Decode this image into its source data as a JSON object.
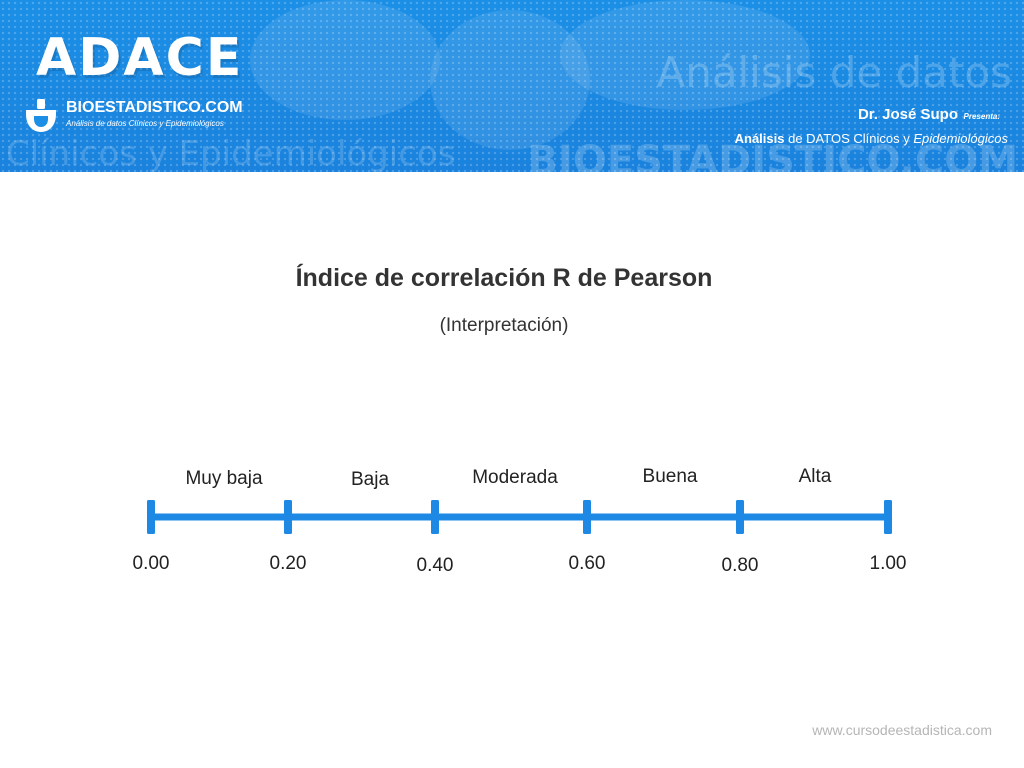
{
  "header": {
    "brand": "ADACE",
    "site_name": "BIOESTADISTICO.COM",
    "site_tagline": "Análisis de datos Clínicos y Epidemiológicos",
    "watermark_right": "Análisis de datos",
    "watermark_left": "Clínicos y Epidemiológicos",
    "watermark_bottom": "BIOESTADISTICO.COM",
    "presenter": "Dr. José Supo",
    "presenta": "Presenta:",
    "tagline_bold": "Análisis",
    "tagline_middle": " de DATOS Clínicos y ",
    "tagline_italic": "Epidemiológicos"
  },
  "diagram": {
    "title": "Índice de correlación R de Pearson",
    "subtitle": "(Interpretación)",
    "ticks": [
      {
        "value": 0.0,
        "label": "0.00"
      },
      {
        "value": 0.2,
        "label": "0.20"
      },
      {
        "value": 0.4,
        "label": "0.40"
      },
      {
        "value": 0.6,
        "label": "0.60"
      },
      {
        "value": 0.8,
        "label": "0.80"
      },
      {
        "value": 1.0,
        "label": "1.00"
      }
    ],
    "categories": [
      "Muy baja",
      "Baja",
      "Moderada",
      "Buena",
      "Alta"
    ],
    "line_color": "#1e88e5"
  },
  "footer": {
    "url": "www.cursodeestadistica.com"
  }
}
